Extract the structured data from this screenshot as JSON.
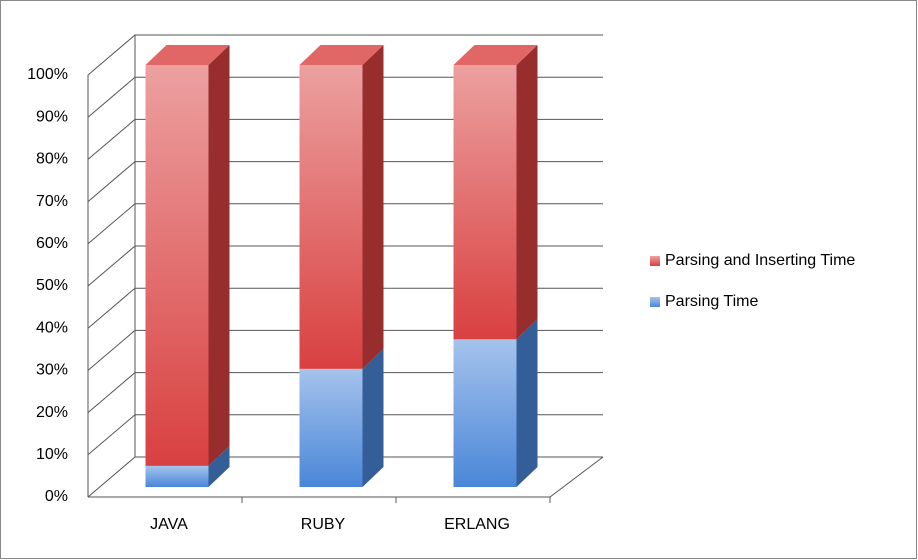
{
  "chart_data": {
    "type": "bar",
    "stacked": true,
    "three_d": true,
    "categories": [
      "JAVA",
      "RUBY",
      "ERLANG"
    ],
    "series": [
      {
        "name": "Parsing Time",
        "color": "#4a86d8",
        "values": [
          5,
          28,
          35
        ]
      },
      {
        "name": "Parsing and Inserting Time",
        "color": "#d94040",
        "values": [
          95,
          72,
          65
        ]
      }
    ],
    "ylim": [
      0,
      100
    ],
    "yticks": [
      {
        "value": 0,
        "label": "0%"
      },
      {
        "value": 10,
        "label": "10%"
      },
      {
        "value": 20,
        "label": "20%"
      },
      {
        "value": 30,
        "label": "30%"
      },
      {
        "value": 40,
        "label": "40%"
      },
      {
        "value": 50,
        "label": "50%"
      },
      {
        "value": 60,
        "label": "60%"
      },
      {
        "value": 70,
        "label": "70%"
      },
      {
        "value": 80,
        "label": "80%"
      },
      {
        "value": 90,
        "label": "90%"
      },
      {
        "value": 100,
        "label": "100%"
      }
    ],
    "grid": true,
    "legend": "right"
  }
}
